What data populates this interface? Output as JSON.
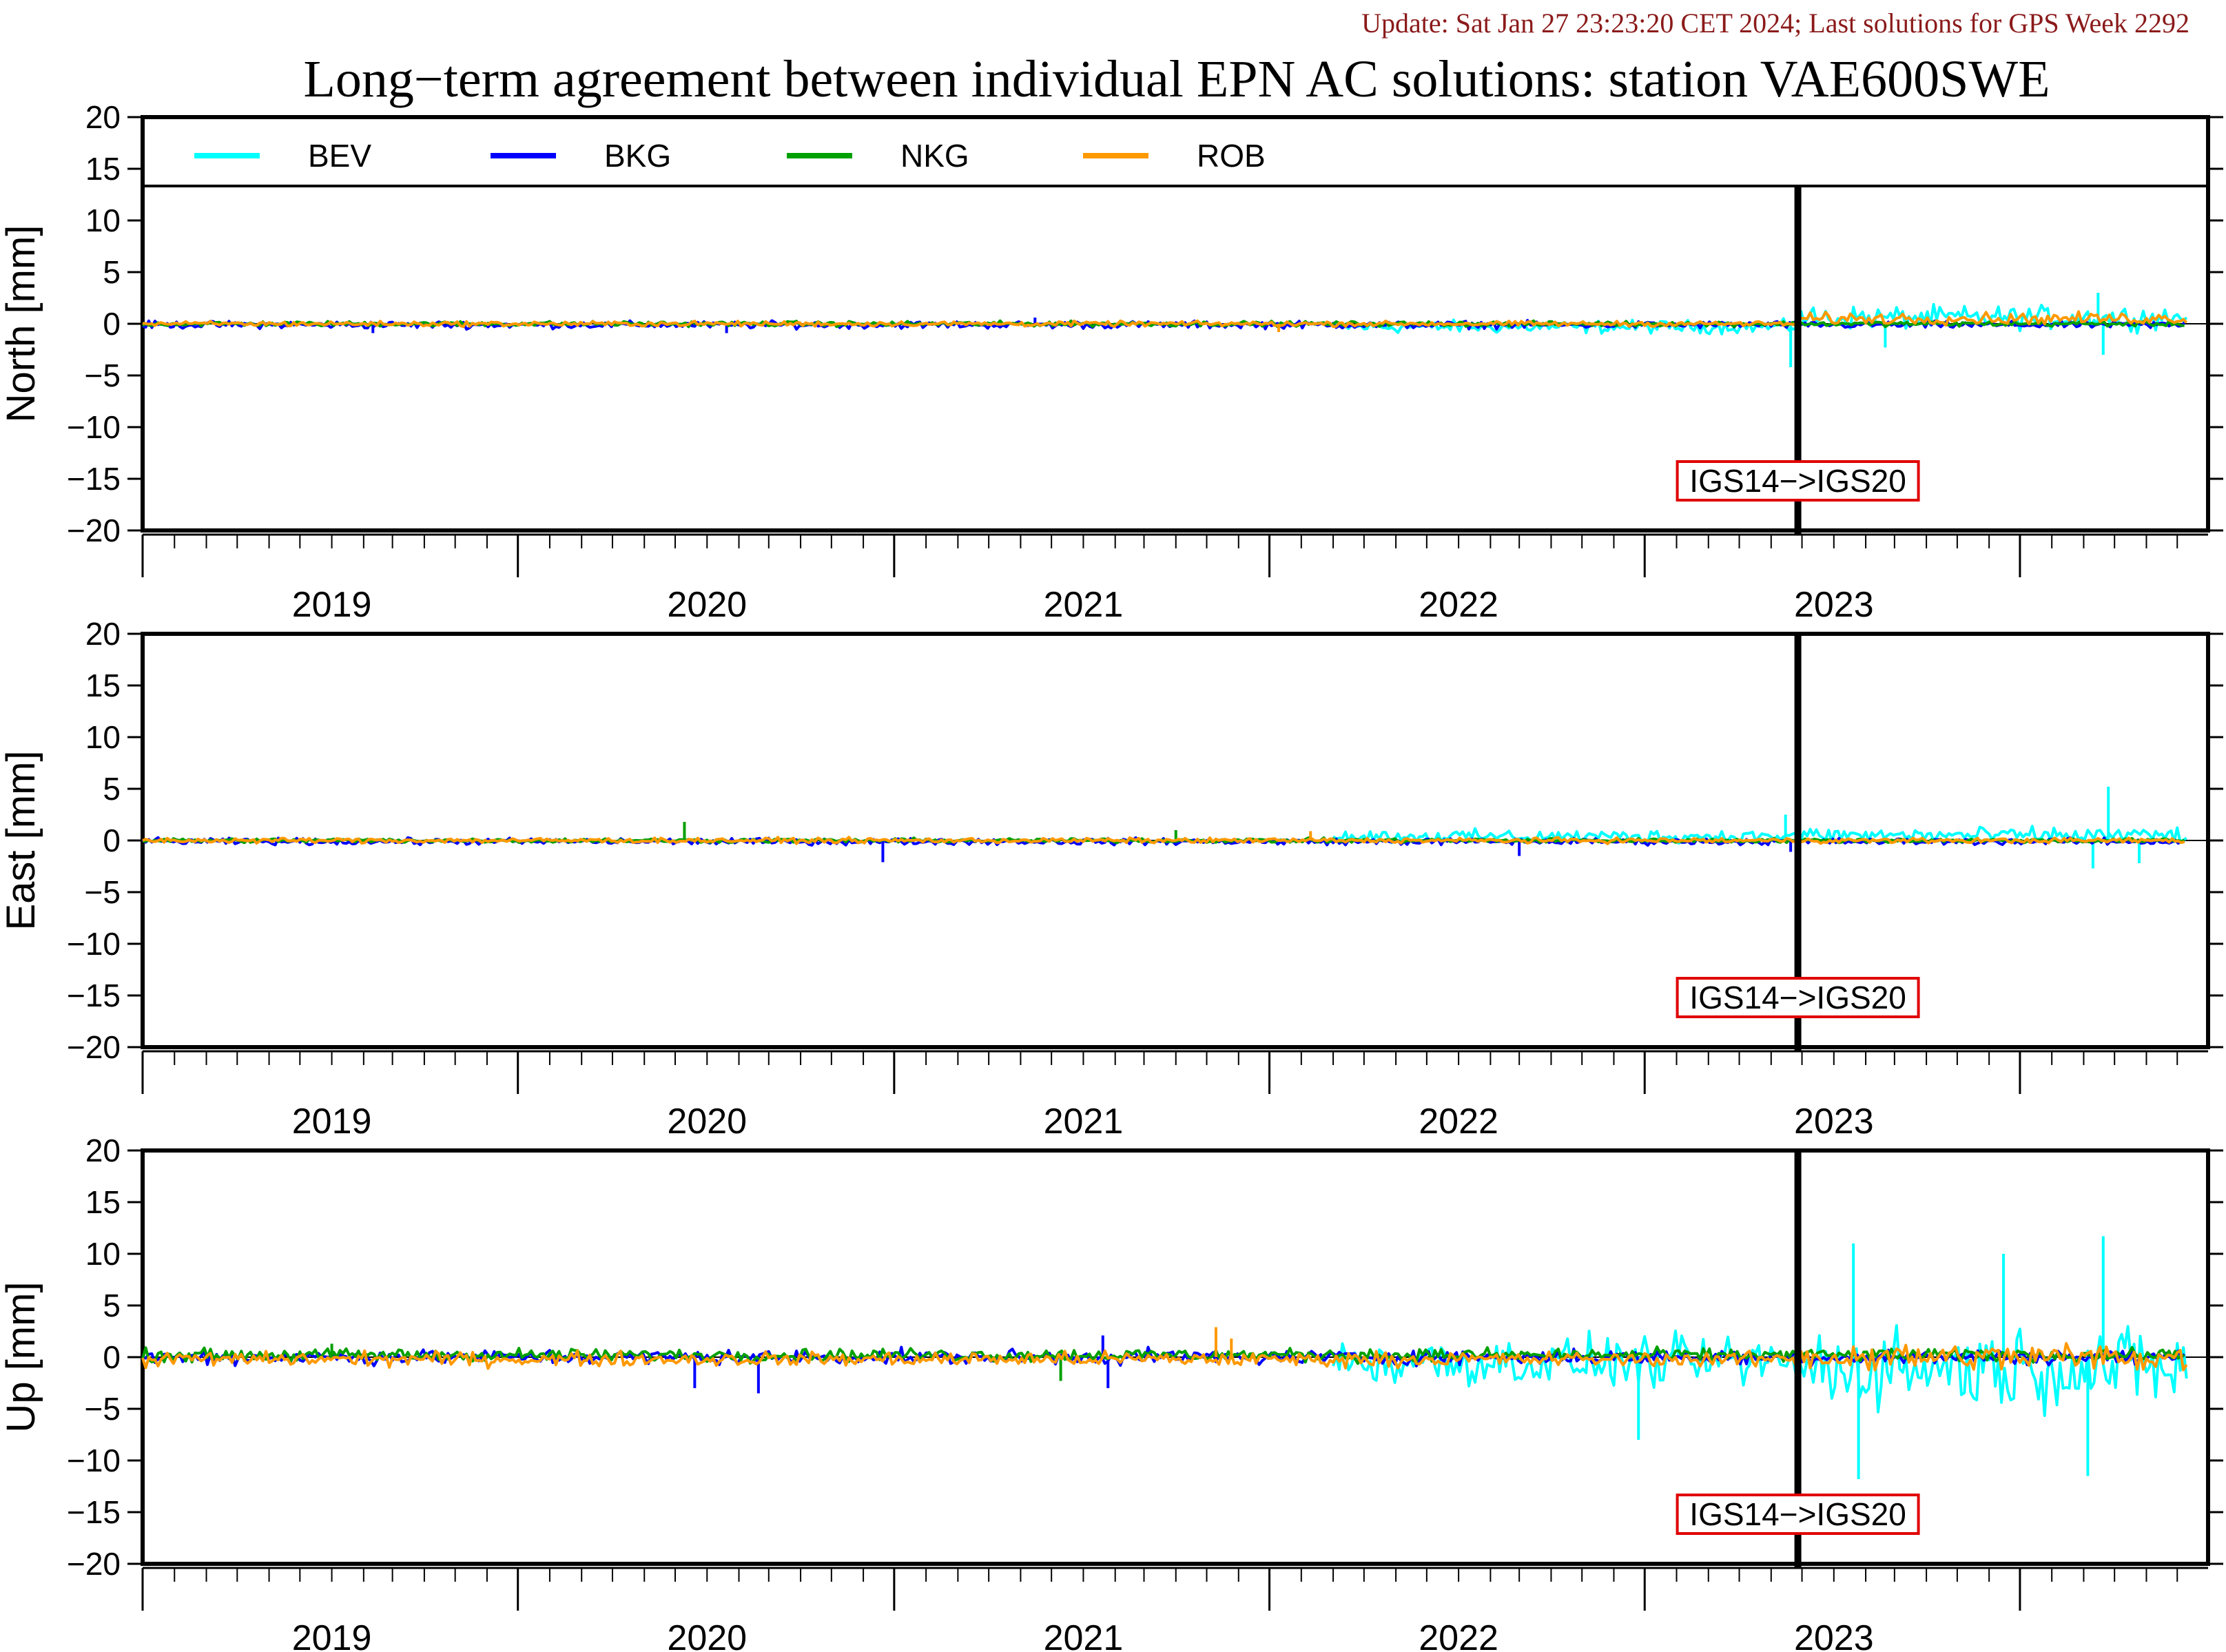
{
  "header": {
    "update": "Update: Sat Jan 27 23:23:20 CET 2024; Last solutions for GPS Week 2292",
    "title": "Long−term agreement between individual EPN AC solutions: station VAE600SWE"
  },
  "colors": {
    "BEV": "#00ffff",
    "BKG": "#0000ff",
    "NKG": "#00a000",
    "ROB": "#ff9900",
    "update_text": "#8b1a1a",
    "annotation_box": "#e00000"
  },
  "chart_data": [
    {
      "type": "line",
      "ylabel": "North [mm]",
      "ylim": [
        -20,
        20
      ],
      "yticks": [
        "20",
        "15",
        "10",
        "5",
        "0",
        "−5",
        "−10",
        "−15",
        "−20"
      ],
      "x_tick_labels": [
        "2019",
        "2020",
        "2021",
        "2022",
        "2023"
      ],
      "xlim": [
        "2018-07-01",
        "2023-12-31"
      ],
      "legend": {
        "placement": "top",
        "entries": [
          "BEV",
          "BKG",
          "NKG",
          "ROB"
        ]
      },
      "annotation": {
        "text": "IGS14−>IGS20",
        "x": "2022-11-27"
      },
      "series": [
        {
          "name": "BEV",
          "segments": [
            {
              "from": "2021-09-01",
              "to": "2022-11-27",
              "mean": -0.3,
              "amplitude": 0.9
            },
            {
              "from": "2022-11-27",
              "to": "2023-12-10",
              "mean": 0.6,
              "amplitude": 1.6
            }
          ],
          "spikes": [
            [
              "2022-11-20",
              -4.2
            ],
            [
              "2023-09-15",
              3.0
            ],
            [
              "2023-09-20",
              -3.0
            ],
            [
              "2023-02-20",
              -2.3
            ]
          ]
        },
        {
          "name": "BKG",
          "segments": [
            {
              "from": "2018-07-01",
              "to": "2023-12-10",
              "mean": -0.1,
              "amplitude": 0.5
            }
          ],
          "spikes": [
            [
              "2019-02-10",
              -0.9
            ],
            [
              "2020-01-20",
              -0.9
            ],
            [
              "2020-11-15",
              0.6
            ]
          ]
        },
        {
          "name": "NKG",
          "segments": [
            {
              "from": "2018-07-01",
              "to": "2023-12-10",
              "mean": 0.0,
              "amplitude": 0.35
            }
          ],
          "spikes": []
        },
        {
          "name": "ROB",
          "segments": [
            {
              "from": "2018-07-01",
              "to": "2022-11-27",
              "mean": 0.0,
              "amplitude": 0.35
            },
            {
              "from": "2022-11-27",
              "to": "2023-12-10",
              "mean": 0.5,
              "amplitude": 0.8
            }
          ],
          "spikes": [
            [
              "2021-07-10",
              -0.8
            ]
          ]
        }
      ]
    },
    {
      "type": "line",
      "ylabel": "East [mm]",
      "ylim": [
        -20,
        20
      ],
      "yticks": [
        "20",
        "15",
        "10",
        "5",
        "0",
        "−5",
        "−10",
        "−15",
        "−20"
      ],
      "x_tick_labels": [
        "2019",
        "2020",
        "2021",
        "2022",
        "2023"
      ],
      "xlim": [
        "2018-07-01",
        "2023-12-31"
      ],
      "annotation": {
        "text": "IGS14−>IGS20",
        "x": "2022-11-27"
      },
      "series": [
        {
          "name": "BEV",
          "segments": [
            {
              "from": "2021-09-01",
              "to": "2022-11-27",
              "mean": 0.4,
              "amplitude": 0.9
            },
            {
              "from": "2022-11-27",
              "to": "2023-12-10",
              "mean": 0.5,
              "amplitude": 1.1
            }
          ],
          "spikes": [
            [
              "2022-11-15",
              2.5
            ],
            [
              "2023-09-25",
              5.2
            ],
            [
              "2023-09-10",
              -2.7
            ],
            [
              "2023-10-25",
              -2.2
            ]
          ]
        },
        {
          "name": "BKG",
          "segments": [
            {
              "from": "2018-07-01",
              "to": "2023-12-10",
              "mean": -0.1,
              "amplitude": 0.45
            }
          ],
          "spikes": [
            [
              "2020-06-20",
              -2.1
            ],
            [
              "2022-03-01",
              -1.5
            ],
            [
              "2022-11-20",
              -1.1
            ]
          ]
        },
        {
          "name": "NKG",
          "segments": [
            {
              "from": "2018-07-01",
              "to": "2023-12-10",
              "mean": 0.0,
              "amplitude": 0.3
            }
          ],
          "spikes": [
            [
              "2019-12-10",
              1.8
            ],
            [
              "2021-04-01",
              1.0
            ]
          ]
        },
        {
          "name": "ROB",
          "segments": [
            {
              "from": "2018-07-01",
              "to": "2023-12-10",
              "mean": 0.0,
              "amplitude": 0.35
            }
          ],
          "spikes": [
            [
              "2021-08-10",
              0.9
            ]
          ]
        }
      ]
    },
    {
      "type": "line",
      "ylabel": "Up [mm]",
      "ylim": [
        -20,
        20
      ],
      "yticks": [
        "20",
        "15",
        "10",
        "5",
        "0",
        "−5",
        "−10",
        "−15",
        "−20"
      ],
      "x_tick_labels": [
        "2019",
        "2020",
        "2021",
        "2022",
        "2023"
      ],
      "xlim": [
        "2018-07-01",
        "2023-12-31"
      ],
      "annotation": {
        "text": "IGS14−>IGS20",
        "x": "2022-11-27"
      },
      "series": [
        {
          "name": "BEV",
          "segments": [
            {
              "from": "2021-09-01",
              "to": "2022-11-27",
              "mean": -0.5,
              "amplitude": 3.5
            },
            {
              "from": "2022-11-27",
              "to": "2023-12-10",
              "mean": -1.0,
              "amplitude": 5.5
            }
          ],
          "spikes": [
            [
              "2023-09-20",
              11.7
            ],
            [
              "2023-09-05",
              -11.5
            ],
            [
              "2023-01-20",
              11.0
            ],
            [
              "2023-01-25",
              -11.8
            ],
            [
              "2022-06-25",
              -8.0
            ],
            [
              "2023-06-15",
              10.0
            ]
          ]
        },
        {
          "name": "BKG",
          "segments": [
            {
              "from": "2018-07-01",
              "to": "2023-12-10",
              "mean": 0.0,
              "amplitude": 1.0
            }
          ],
          "spikes": [
            [
              "2019-12-20",
              -3.0
            ],
            [
              "2020-02-20",
              -3.5
            ],
            [
              "2021-01-20",
              2.1
            ],
            [
              "2021-01-25",
              -3.0
            ]
          ]
        },
        {
          "name": "NKG",
          "segments": [
            {
              "from": "2018-07-01",
              "to": "2023-12-10",
              "mean": 0.2,
              "amplitude": 0.9
            }
          ],
          "spikes": [
            [
              "2019-01-01",
              1.3
            ],
            [
              "2020-12-10",
              -2.3
            ]
          ]
        },
        {
          "name": "ROB",
          "segments": [
            {
              "from": "2018-07-01",
              "to": "2022-11-27",
              "mean": -0.2,
              "amplitude": 1.0
            },
            {
              "from": "2022-11-27",
              "to": "2023-12-10",
              "mean": 0.0,
              "amplitude": 2.0
            }
          ],
          "spikes": [
            [
              "2021-05-10",
              2.9
            ],
            [
              "2021-05-25",
              1.8
            ]
          ]
        }
      ]
    }
  ]
}
